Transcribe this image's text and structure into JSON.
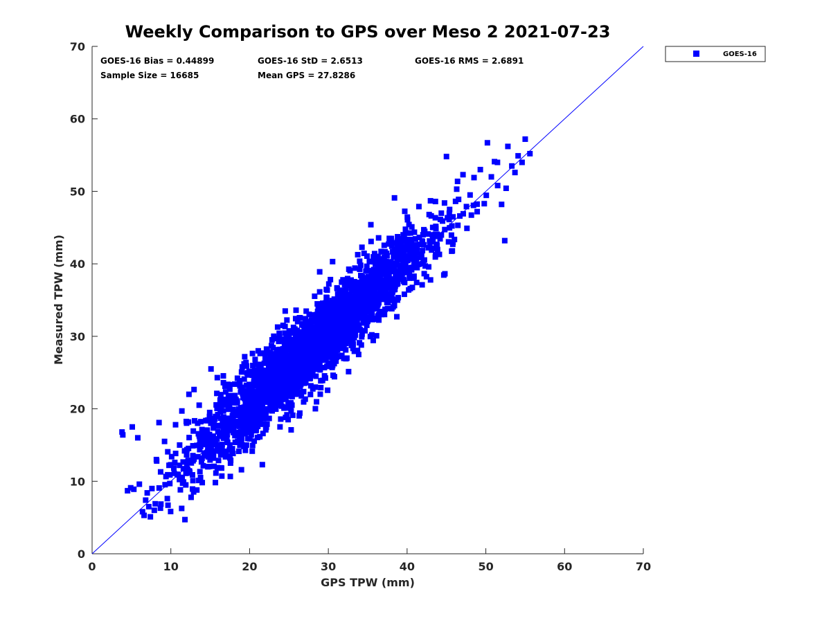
{
  "chart_data": {
    "type": "scatter",
    "title": "Weekly Comparison to GPS over Meso 2 2021-07-23",
    "xlabel": "GPS TPW (mm)",
    "ylabel": "Measured TPW (mm)",
    "xlim": [
      0,
      70
    ],
    "ylim": [
      0,
      70
    ],
    "xticks": [
      "0",
      "10",
      "20",
      "30",
      "40",
      "50",
      "60",
      "70"
    ],
    "yticks": [
      "0",
      "10",
      "20",
      "30",
      "40",
      "50",
      "60",
      "70"
    ],
    "grid": false,
    "legend_position": "outside-top-right",
    "series": [
      {
        "name": "GOES-16",
        "color": "#0000ff",
        "marker": "square",
        "description_points": "dense cloud of ~16685 points clustered along the 1:1 line from about 4 to 56 mm",
        "points": [
          [
            3.8,
            16.8
          ],
          [
            3.9,
            16.4
          ],
          [
            4.5,
            8.7
          ],
          [
            4.9,
            9.1
          ],
          [
            5.1,
            17.5
          ],
          [
            5.3,
            8.9
          ],
          [
            5.8,
            16.0
          ],
          [
            6.0,
            9.6
          ],
          [
            6.4,
            5.8
          ],
          [
            6.6,
            5.3
          ],
          [
            6.8,
            7.4
          ],
          [
            7.0,
            8.4
          ],
          [
            7.2,
            6.5
          ],
          [
            7.4,
            5.1
          ],
          [
            7.6,
            9.0
          ],
          [
            7.9,
            6.0
          ],
          [
            8.2,
            12.8
          ],
          [
            8.5,
            18.1
          ],
          [
            8.7,
            11.3
          ],
          [
            9.2,
            15.5
          ],
          [
            9.6,
            10.9
          ],
          [
            10.1,
            13.4
          ],
          [
            10.6,
            17.8
          ],
          [
            11.1,
            12.2
          ],
          [
            11.4,
            19.7
          ],
          [
            11.9,
            9.5
          ],
          [
            12.3,
            22.0
          ],
          [
            12.8,
            14.9
          ],
          [
            13.3,
            8.8
          ],
          [
            13.6,
            20.5
          ],
          [
            14.2,
            16.9
          ],
          [
            14.7,
            12.0
          ],
          [
            15.1,
            25.5
          ],
          [
            15.5,
            18.0
          ],
          [
            15.9,
            24.3
          ],
          [
            16.3,
            14.4
          ],
          [
            16.8,
            21.3
          ],
          [
            17.2,
            17.5
          ],
          [
            17.6,
            12.9
          ],
          [
            18.1,
            23.4
          ],
          [
            18.5,
            19.1
          ],
          [
            18.9,
            15.6
          ],
          [
            19.3,
            26.2
          ],
          [
            19.8,
            21.8
          ],
          [
            20.2,
            18.4
          ],
          [
            20.6,
            24.7
          ],
          [
            21.1,
            28.0
          ],
          [
            21.5,
            22.5
          ],
          [
            21.9,
            19.7
          ],
          [
            22.4,
            26.8
          ],
          [
            22.8,
            23.3
          ],
          [
            23.3,
            20.8
          ],
          [
            23.7,
            29.3
          ],
          [
            24.1,
            25.6
          ],
          [
            24.6,
            22.1
          ],
          [
            25.0,
            30.2
          ],
          [
            25.4,
            26.9
          ],
          [
            25.9,
            33.6
          ],
          [
            26.3,
            24.5
          ],
          [
            26.7,
            28.7
          ],
          [
            27.2,
            31.4
          ],
          [
            27.6,
            27.0
          ],
          [
            28.0,
            24.8
          ],
          [
            28.5,
            33.0
          ],
          [
            28.9,
            38.9
          ],
          [
            29.3,
            29.6
          ],
          [
            29.8,
            27.4
          ],
          [
            30.2,
            34.1
          ],
          [
            30.6,
            31.1
          ],
          [
            31.1,
            28.2
          ],
          [
            31.5,
            36.0
          ],
          [
            31.9,
            32.4
          ],
          [
            32.4,
            29.8
          ],
          [
            32.8,
            37.5
          ],
          [
            33.2,
            34.0
          ],
          [
            33.7,
            30.9
          ],
          [
            34.1,
            39.8
          ],
          [
            34.5,
            35.2
          ],
          [
            35.0,
            32.1
          ],
          [
            35.4,
            45.4
          ],
          [
            35.8,
            37.3
          ],
          [
            36.3,
            34.4
          ],
          [
            36.7,
            41.7
          ],
          [
            37.1,
            38.6
          ],
          [
            37.6,
            35.3
          ],
          [
            38.0,
            43.5
          ],
          [
            38.4,
            49.1
          ],
          [
            38.9,
            37.9
          ],
          [
            39.3,
            42.9
          ],
          [
            39.7,
            39.4
          ],
          [
            40.2,
            36.4
          ],
          [
            40.6,
            45.1
          ],
          [
            41.0,
            41.4
          ],
          [
            41.5,
            47.9
          ],
          [
            41.9,
            43.0
          ],
          [
            42.3,
            39.7
          ],
          [
            42.8,
            46.8
          ],
          [
            43.2,
            44.0
          ],
          [
            43.6,
            48.6
          ],
          [
            44.1,
            41.3
          ],
          [
            44.5,
            45.9
          ],
          [
            45.0,
            54.8
          ],
          [
            45.4,
            47.5
          ],
          [
            45.8,
            42.7
          ],
          [
            46.3,
            50.3
          ],
          [
            46.7,
            46.6
          ],
          [
            47.1,
            52.3
          ],
          [
            47.6,
            44.9
          ],
          [
            48.0,
            49.5
          ],
          [
            48.5,
            51.9
          ],
          [
            48.9,
            47.2
          ],
          [
            49.3,
            53.0
          ],
          [
            49.8,
            48.3
          ],
          [
            50.2,
            56.7
          ],
          [
            50.7,
            52.0
          ],
          [
            51.1,
            54.1
          ],
          [
            51.5,
            50.8
          ],
          [
            52.0,
            48.2
          ],
          [
            52.4,
            43.2
          ],
          [
            52.8,
            56.2
          ],
          [
            53.3,
            53.5
          ],
          [
            53.7,
            52.6
          ],
          [
            54.1,
            54.9
          ],
          [
            54.6,
            54.0
          ],
          [
            55.0,
            57.2
          ],
          [
            55.6,
            55.2
          ]
        ]
      }
    ],
    "reference_line": {
      "type": "1:1",
      "from": [
        0,
        0
      ],
      "to": [
        70,
        70
      ],
      "color": "#0000ff"
    },
    "stats": {
      "bias": "GOES-16 Bias = 0.44899",
      "std": "GOES-16 StD = 2.6513",
      "rms": "GOES-16 RMS = 2.6891",
      "sample_size": "Sample Size = 16685",
      "mean_gps": "Mean GPS = 27.8286"
    },
    "legend": {
      "label": "GOES-16"
    }
  }
}
